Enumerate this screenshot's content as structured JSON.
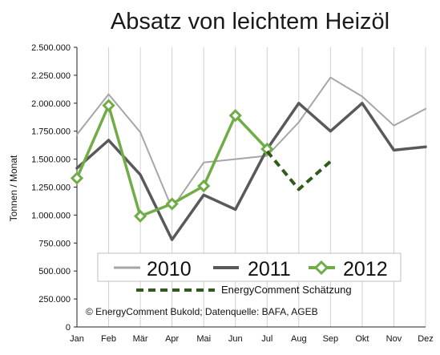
{
  "chart_data": {
    "type": "line",
    "title": "Absatz von leichtem Heizöl",
    "xlabel": "",
    "ylabel": "Tonnen / Monat",
    "categories": [
      "Jan",
      "Feb",
      "Mär",
      "Apr",
      "Mai",
      "Jun",
      "Jul",
      "Aug",
      "Sep",
      "Okt",
      "Nov",
      "Dez"
    ],
    "ylim": [
      0,
      2500000
    ],
    "yticks": [
      0,
      250000,
      500000,
      750000,
      1000000,
      1250000,
      1500000,
      1750000,
      2000000,
      2250000,
      2500000
    ],
    "ytick_labels": [
      "0",
      "250.000",
      "500.000",
      "750.000",
      "1.000.000",
      "1.250.000",
      "1.500.000",
      "1.750.000",
      "2.000.000",
      "2.250.000",
      "2.500.000"
    ],
    "grid": "vertical",
    "series": [
      {
        "name": "2010",
        "color": "#a6a6a6",
        "style": "solid",
        "values": [
          1720000,
          2080000,
          1740000,
          1060000,
          1470000,
          1500000,
          1530000,
          1830000,
          2230000,
          2060000,
          1800000,
          1950000
        ]
      },
      {
        "name": "2011",
        "color": "#595959",
        "style": "solid",
        "values": [
          1420000,
          1670000,
          1360000,
          780000,
          1180000,
          1050000,
          1590000,
          2000000,
          1750000,
          2000000,
          1580000,
          1610000
        ]
      },
      {
        "name": "2012",
        "color": "#70ad47",
        "style": "solid-diamond",
        "values": [
          1330000,
          1980000,
          990000,
          1100000,
          1260000,
          1890000,
          1590000,
          null,
          null,
          null,
          null,
          null
        ]
      },
      {
        "name": "EnergyComment Schätzung",
        "color": "#2e5a1c",
        "style": "dashed",
        "values": [
          null,
          null,
          null,
          null,
          null,
          null,
          1570000,
          1230000,
          1480000,
          null,
          null,
          null
        ]
      }
    ],
    "legend": {
      "position": "bottom-center",
      "entries": [
        "2010",
        "2011",
        "2012"
      ],
      "secondary_entry": "EnergyComment Schätzung"
    },
    "annotation": "© EnergyComment Bukold; Datenquelle: BAFA, AGEB"
  }
}
